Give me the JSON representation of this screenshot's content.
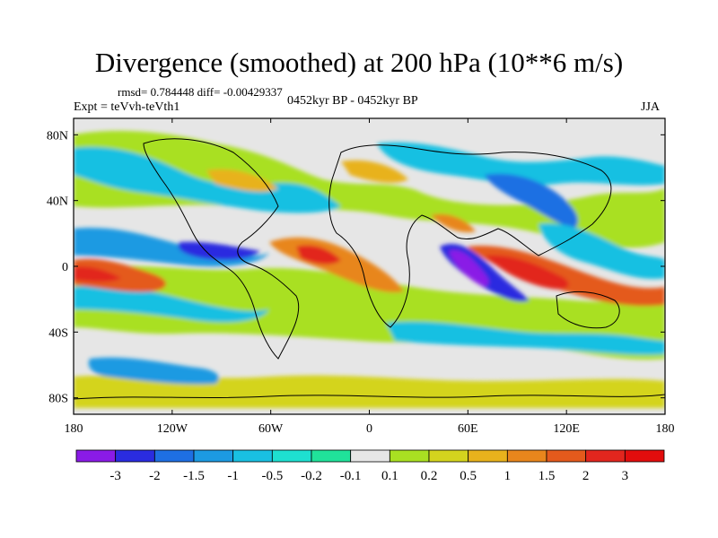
{
  "header": {
    "title": "Divergence (smoothed) at 200 hPa (10**6 m/s)",
    "stats": "rmsd= 0.784448  diff= -0.00429337",
    "experiment": "Expt = teVvh-teVth1",
    "period": "0452kyr BP - 0452kyr BP",
    "season": "JJA"
  },
  "axes": {
    "x_ticks": [
      "180",
      "120W",
      "60W",
      "0",
      "60E",
      "120E",
      "180"
    ],
    "y_ticks": [
      "80N",
      "40N",
      "0",
      "40S",
      "80S"
    ]
  },
  "colorbar": {
    "labels": [
      "-3",
      "-2",
      "-1.5",
      "-1",
      "-0.5",
      "-0.2",
      "-0.1",
      "0.1",
      "0.2",
      "0.5",
      "1",
      "1.5",
      "2",
      "3"
    ],
    "colors": [
      "#8a1be6",
      "#2a2ce0",
      "#1e6fe3",
      "#1c9ae2",
      "#19c0e2",
      "#1ee0d0",
      "#20e29a",
      "#e6e6e6",
      "#a9e022",
      "#d4d41e",
      "#e8b21c",
      "#e8861c",
      "#e45a1c",
      "#e2261e"
    ]
  }
}
